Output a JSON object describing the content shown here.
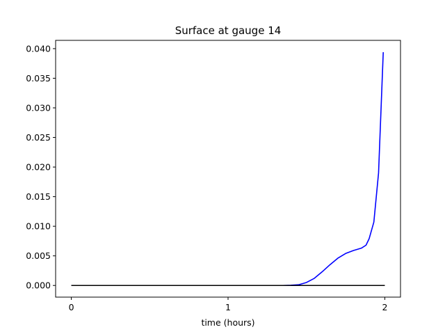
{
  "chart_data": {
    "type": "line",
    "title": "Surface at gauge 14",
    "xlabel": "time (hours)",
    "ylabel": "",
    "xlim": [
      -0.1,
      2.1
    ],
    "ylim": [
      -0.00197,
      0.0414
    ],
    "xticks": [
      0,
      1,
      2
    ],
    "xtick_labels": [
      "0",
      "1",
      "2"
    ],
    "yticks": [
      0.0,
      0.005,
      0.01,
      0.015,
      0.02,
      0.025,
      0.03,
      0.035,
      0.04
    ],
    "ytick_labels": [
      "0.000",
      "0.005",
      "0.010",
      "0.015",
      "0.020",
      "0.025",
      "0.030",
      "0.035",
      "0.040"
    ],
    "grid": false,
    "legend": "none",
    "series": [
      {
        "color": "#0000ff",
        "x": [
          0.0,
          0.2,
          0.4,
          0.6,
          0.8,
          1.0,
          1.2,
          1.35,
          1.4,
          1.45,
          1.5,
          1.55,
          1.6,
          1.65,
          1.7,
          1.75,
          1.8,
          1.85,
          1.88,
          1.9,
          1.93,
          1.96,
          1.99
        ],
        "y": [
          0.0,
          0.0,
          0.0,
          0.0,
          0.0,
          0.0,
          0.0,
          0.0,
          3e-05,
          0.00012,
          0.0005,
          0.0012,
          0.0023,
          0.0035,
          0.0046,
          0.0054,
          0.0059,
          0.0063,
          0.0068,
          0.0079,
          0.0107,
          0.019,
          0.0394
        ]
      },
      {
        "color": "#000000",
        "x": [
          0.0,
          2.0
        ],
        "y": [
          0.0,
          0.0
        ]
      }
    ]
  }
}
